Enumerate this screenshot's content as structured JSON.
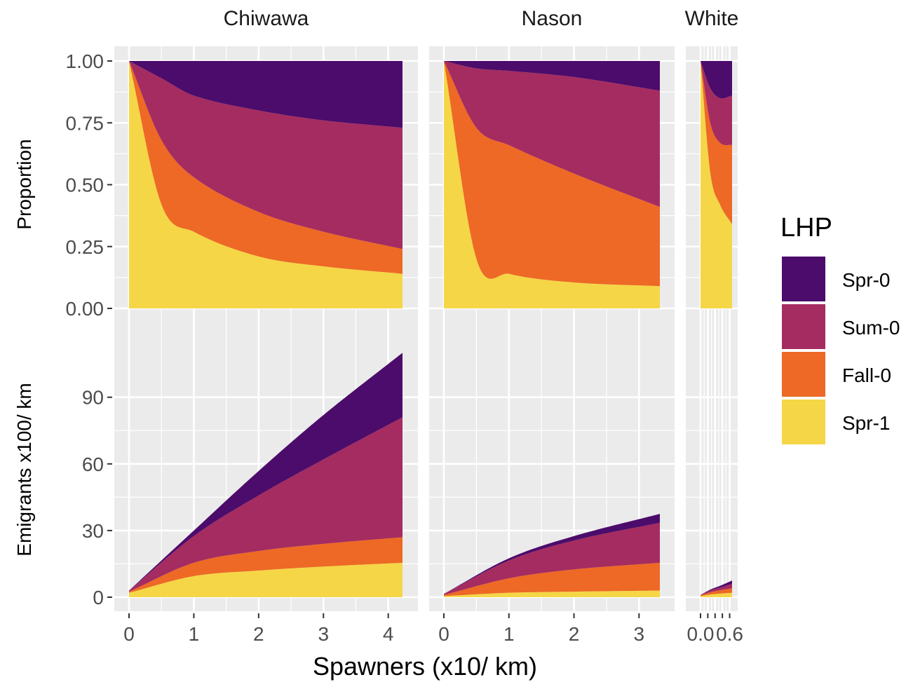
{
  "chart_data": {
    "type": "area",
    "stacked": true,
    "x_label": "Spawners (x10/ km)",
    "facet_columns": [
      "Chiwawa",
      "Nason",
      "White"
    ],
    "facet_rows": [
      {
        "ylabel": "Proportion",
        "ylim": [
          0,
          1
        ],
        "yticks": [
          "0.00",
          "0.25",
          "0.50",
          "0.75",
          "1.00"
        ]
      },
      {
        "ylabel": "Emigrants x100/ km",
        "ylim": [
          0,
          112
        ],
        "yticks": [
          "0",
          "30",
          "60",
          "90"
        ]
      }
    ],
    "legend": {
      "title": "LHP",
      "position": "right",
      "entries": [
        {
          "name": "Spr-0",
          "color": "#4c0c6b"
        },
        {
          "name": "Sum-0",
          "color": "#a52c60"
        },
        {
          "name": "Fall-0",
          "color": "#ed6925"
        },
        {
          "name": "Spr-1",
          "color": "#f5d647"
        }
      ]
    },
    "grid": true,
    "panel_background": "#ebebeb",
    "stack_order_bottom_to_top": [
      "Spr-1",
      "Fall-0",
      "Sum-0",
      "Spr-0"
    ],
    "panels": [
      {
        "column": "Chiwawa",
        "xlim": [
          0,
          4.22
        ],
        "xticks": [
          "0",
          "1",
          "2",
          "3",
          "4"
        ],
        "proportion": {
          "x": [
            0,
            0.5,
            1,
            2,
            3,
            4.22
          ],
          "Spr-1": [
            1,
            0.42,
            0.31,
            0.21,
            0.17,
            0.14
          ],
          "Fall-0": [
            0,
            0.26,
            0.22,
            0.18,
            0.14,
            0.1
          ],
          "Sum-0": [
            0,
            0.25,
            0.33,
            0.41,
            0.45,
            0.49
          ],
          "Spr-0": [
            0,
            0.07,
            0.14,
            0.2,
            0.24,
            0.27
          ]
        },
        "emigrants": {
          "x": [
            0,
            1,
            2,
            3,
            4.22
          ],
          "Spr-1": [
            2,
            9.5,
            12,
            13.8,
            15.5
          ],
          "Fall-0": [
            0.5,
            6,
            8.8,
            10.2,
            11.5
          ],
          "Sum-0": [
            0.5,
            12,
            25,
            38,
            54
          ],
          "Spr-0": [
            0,
            2.5,
            11,
            20,
            29
          ]
        }
      },
      {
        "column": "Nason",
        "xlim": [
          0,
          3.32
        ],
        "xticks": [
          "0",
          "1",
          "2",
          "3"
        ],
        "proportion": {
          "x": [
            0,
            0.5,
            1,
            2,
            3.32
          ],
          "Spr-1": [
            1,
            0.2,
            0.14,
            0.105,
            0.09
          ],
          "Fall-0": [
            0,
            0.53,
            0.52,
            0.44,
            0.32
          ],
          "Sum-0": [
            0,
            0.24,
            0.3,
            0.39,
            0.47
          ],
          "Spr-0": [
            0,
            0.03,
            0.04,
            0.065,
            0.12
          ]
        },
        "emigrants": {
          "x": [
            0,
            1,
            2,
            3.32
          ],
          "Spr-1": [
            0.5,
            2,
            2.5,
            3
          ],
          "Fall-0": [
            0.5,
            6.5,
            10,
            12.5
          ],
          "Sum-0": [
            0.5,
            8,
            13,
            18
          ],
          "Spr-0": [
            0,
            1,
            2,
            4
          ]
        }
      },
      {
        "column": "White",
        "xlim": [
          0,
          0.65
        ],
        "xticks": [
          "0.0",
          "0.6"
        ],
        "proportion": {
          "x": [
            0,
            0.2,
            0.4,
            0.65
          ],
          "Spr-1": [
            1,
            0.55,
            0.42,
            0.34
          ],
          "Fall-0": [
            0,
            0.2,
            0.25,
            0.32
          ],
          "Sum-0": [
            0,
            0.14,
            0.18,
            0.2
          ],
          "Spr-0": [
            0,
            0.11,
            0.15,
            0.14
          ]
        },
        "emigrants": {
          "x": [
            0,
            0.2,
            0.4,
            0.65
          ],
          "Spr-1": [
            0.5,
            1.2,
            1.6,
            2
          ],
          "Fall-0": [
            0.3,
            1,
            1.5,
            2
          ],
          "Sum-0": [
            0.2,
            0.8,
            1.2,
            2
          ],
          "Spr-0": [
            0,
            0.4,
            0.8,
            1.5
          ]
        }
      }
    ]
  }
}
